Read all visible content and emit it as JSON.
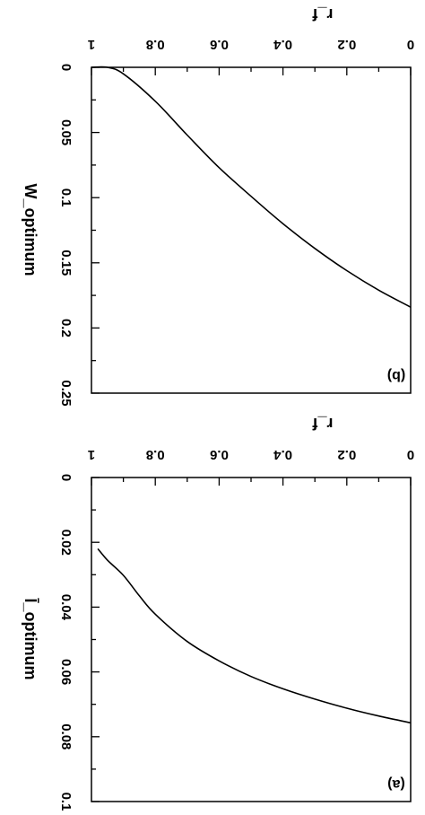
{
  "chart_data": [
    {
      "type": "line",
      "panel_label": "(b)",
      "xlabel": "r_f",
      "ylabel": "W_optimum",
      "xlim": [
        0,
        1
      ],
      "ylim": [
        0,
        0.25
      ],
      "x_ticks": [
        "0",
        "0.2",
        "0.4",
        "0.6",
        "0.8",
        "1"
      ],
      "y_ticks": [
        "0",
        "0.05",
        "0.1",
        "0.15",
        "0.2",
        "0.25"
      ],
      "x_tick_values": [
        0,
        0.2,
        0.4,
        0.6,
        0.8,
        1
      ],
      "y_tick_values": [
        0,
        0.05,
        0.1,
        0.15,
        0.2,
        0.25
      ],
      "image_mirrored": true,
      "series": [
        {
          "x": [
            0,
            0.1,
            0.2,
            0.3,
            0.4,
            0.5,
            0.6,
            0.7,
            0.8,
            0.9,
            0.95,
            1
          ],
          "values": [
            0.184,
            0.171,
            0.156,
            0.139,
            0.12,
            0.099,
            0.077,
            0.052,
            0.026,
            0.005,
            0.0,
            0.0
          ]
        }
      ]
    },
    {
      "type": "line",
      "panel_label": "(a)",
      "xlabel": "r_f",
      "ylabel": "Ī_optimum",
      "xlim": [
        0,
        1
      ],
      "ylim": [
        0,
        0.1
      ],
      "x_ticks": [
        "0",
        "0.2",
        "0.4",
        "0.6",
        "0.8",
        "1"
      ],
      "y_ticks": [
        "0",
        "0.02",
        "0.04",
        "0.06",
        "0.08",
        "0.1"
      ],
      "x_tick_values": [
        0,
        0.2,
        0.4,
        0.6,
        0.8,
        1
      ],
      "y_tick_values": [
        0,
        0.02,
        0.04,
        0.06,
        0.08,
        0.1
      ],
      "image_mirrored": true,
      "series": [
        {
          "x": [
            0,
            0.1,
            0.2,
            0.3,
            0.4,
            0.5,
            0.6,
            0.7,
            0.8,
            0.85,
            0.9,
            0.95,
            0.98
          ],
          "values": [
            0.0757,
            0.0736,
            0.0712,
            0.0684,
            0.0652,
            0.0614,
            0.0566,
            0.0506,
            0.0422,
            0.0365,
            0.0302,
            0.0255,
            0.022
          ]
        }
      ]
    }
  ]
}
